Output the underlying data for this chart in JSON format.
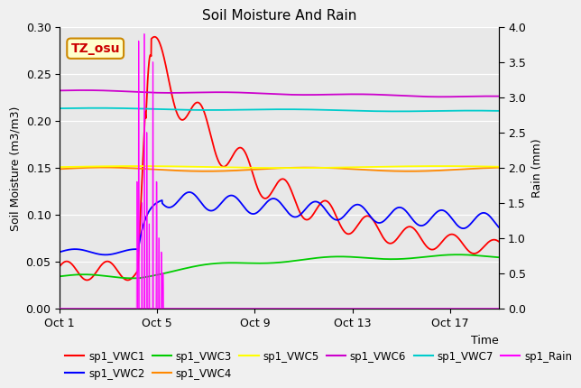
{
  "title": "Soil Moisture And Rain",
  "ylabel_left": "Soil Moisture (m3/m3)",
  "ylabel_right": "Rain (mm)",
  "xlabel": "Time",
  "annotation": "TZ_osu",
  "xlim_days": [
    0,
    18
  ],
  "ylim_left": [
    0.0,
    0.3
  ],
  "ylim_right": [
    0.0,
    4.0
  ],
  "xtick_labels": [
    "Oct 1",
    "Oct 5",
    "Oct 9",
    "Oct 13",
    "Oct 17"
  ],
  "xtick_positions": [
    0,
    4,
    8,
    12,
    16
  ],
  "ytick_left": [
    0.0,
    0.05,
    0.1,
    0.15,
    0.2,
    0.25,
    0.3
  ],
  "ytick_right": [
    0.0,
    0.5,
    1.0,
    1.5,
    2.0,
    2.5,
    3.0,
    3.5,
    4.0
  ],
  "background_color": "#e8e8e8",
  "fig_background": "#f0f0f0",
  "colors": {
    "VWC1": "#ff0000",
    "VWC2": "#0000ff",
    "VWC3": "#00cc00",
    "VWC4": "#ff8800",
    "VWC5": "#ffff00",
    "VWC6": "#cc00cc",
    "VWC7": "#00cccc",
    "Rain": "#ff00ff"
  },
  "legend_labels": [
    "sp1_VWC1",
    "sp1_VWC2",
    "sp1_VWC3",
    "sp1_VWC4",
    "sp1_VWC5",
    "sp1_VWC6",
    "sp1_VWC7",
    "sp1_Rain"
  ]
}
